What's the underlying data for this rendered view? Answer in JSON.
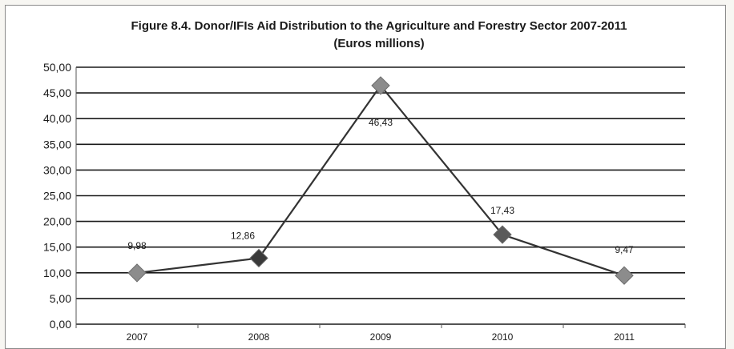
{
  "chart_data": {
    "type": "line",
    "title": "Figure 8.4. Donor/IFIs Aid Distribution to the Agriculture and Forestry Sector 2007-2011",
    "subtitle": "(Euros millions)",
    "xlabel": "",
    "ylabel": "",
    "categories": [
      "2007",
      "2008",
      "2009",
      "2010",
      "2011"
    ],
    "series": [
      {
        "values": [
          9.98,
          12.86,
          46.43,
          17.43,
          9.47
        ],
        "value_labels": [
          "9,98",
          "12,86",
          "46,43",
          "17,43",
          "9,47"
        ],
        "marker_colors": [
          "#8c8c8c",
          "#3a3a3a",
          "#8c8c8c",
          "#5a5a5a",
          "#8c8c8c"
        ]
      }
    ],
    "ylim": [
      0,
      50
    ],
    "y_ticks": [
      0,
      5,
      10,
      15,
      20,
      25,
      30,
      35,
      40,
      45,
      50
    ],
    "y_tick_labels": [
      "0,00",
      "5,00",
      "10,00",
      "15,00",
      "20,00",
      "25,00",
      "30,00",
      "35,00",
      "40,00",
      "45,00",
      "50,00"
    ],
    "grid": true,
    "legend": "none",
    "colors": {
      "line": "#333333",
      "grid": "#1a1a1a",
      "marker": "#8c8c8c"
    }
  }
}
